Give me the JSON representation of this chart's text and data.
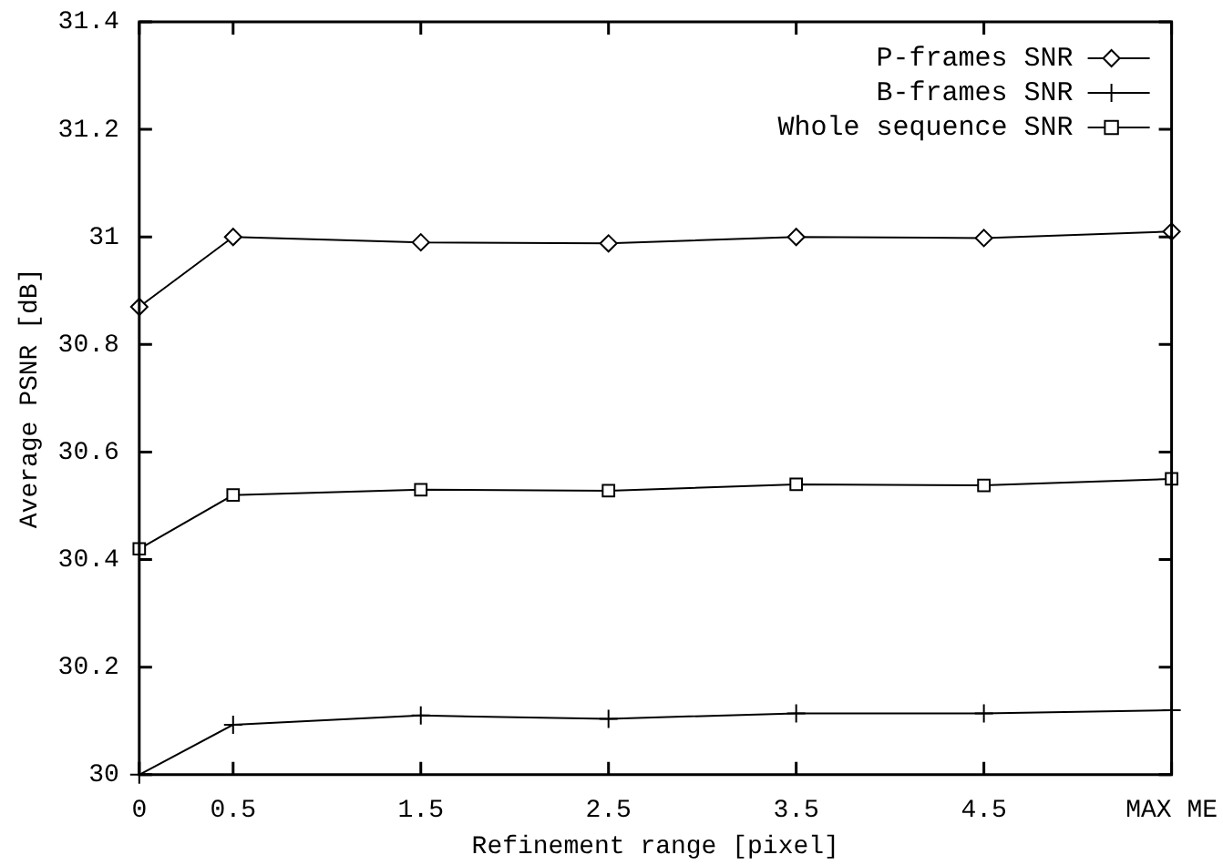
{
  "chart_data": {
    "type": "line",
    "xlabel": "Refinement range [pixel]",
    "ylabel": "Average PSNR [dB]",
    "x": [
      0,
      0.5,
      1.5,
      2.5,
      3.5,
      4.5,
      5.5
    ],
    "xlim": [
      0,
      5.5
    ],
    "xticks": [
      0,
      0.5,
      1.5,
      2.5,
      3.5,
      4.5,
      {
        "value": 5.5,
        "label": "MAX ME"
      }
    ],
    "ylim": [
      30,
      31.4
    ],
    "yticks": [
      30,
      30.2,
      30.4,
      30.6,
      30.8,
      31,
      31.2,
      31.4
    ],
    "grid": false,
    "legend": "top right",
    "series": [
      {
        "name": "P-frames SNR",
        "color": "#000000",
        "marker": "diamond",
        "values": [
          30.87,
          31.0,
          30.99,
          30.988,
          31.0,
          30.998,
          31.01
        ]
      },
      {
        "name": "B-frames SNR",
        "color": "#000000",
        "marker": "cross",
        "values": [
          30.0,
          30.093,
          30.11,
          30.104,
          30.114,
          30.114,
          30.12
        ]
      },
      {
        "name": "Whole sequence SNR",
        "color": "#000000",
        "marker": "square",
        "values": [
          30.42,
          30.52,
          30.53,
          30.528,
          30.54,
          30.538,
          30.55
        ]
      }
    ]
  }
}
